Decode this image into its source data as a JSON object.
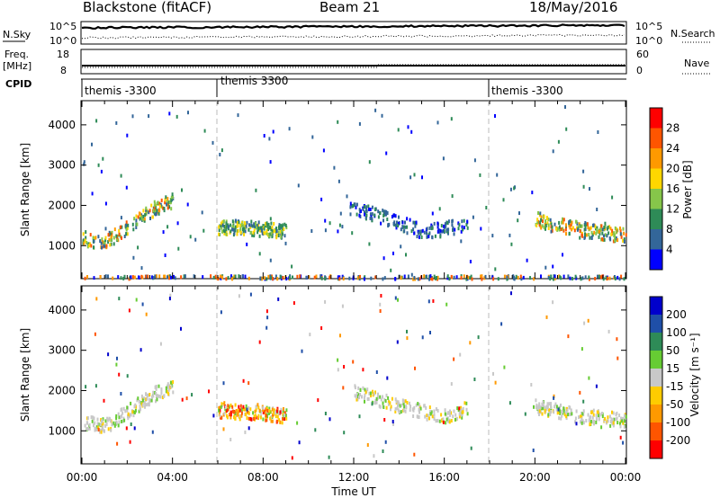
{
  "header": {
    "station": "Blackstone (fitACF)",
    "beam": "Beam 21",
    "date": "18/May/2016"
  },
  "panels": {
    "nsky": {
      "label": "N.Sky",
      "tick_top": "10^5",
      "tick_bottom": "10^0",
      "right_top": "10^5",
      "right_bottom": "10^0"
    },
    "nsearch_label": "N.Search",
    "freq": {
      "label_line1": "Freq.",
      "label_line2": "[MHz]",
      "tick_top": "18",
      "tick_bottom": "8",
      "right_top": "60",
      "right_bottom": "0"
    },
    "nave_label": "Nave",
    "cpid": {
      "label": "CPID",
      "segments": [
        "themis -3300",
        "themis 3300",
        "themis -3300"
      ],
      "segment_start_hours": [
        0,
        6,
        18
      ]
    }
  },
  "colorbars": {
    "power": {
      "label": "Power [dB]",
      "ticks": [
        "28",
        "24",
        "20",
        "16",
        "12",
        "8",
        "4"
      ],
      "colors": [
        "#ff0000",
        "#ff5500",
        "#ff9900",
        "#ffd700",
        "#86c64a",
        "#2e8b57",
        "#336699",
        "#0000ff"
      ]
    },
    "velocity": {
      "label": "Velocity [m s⁻¹]",
      "ticks": [
        "200",
        "100",
        "50",
        "15",
        "-15",
        "-50",
        "-100",
        "-200"
      ],
      "colors": [
        "#0000cc",
        "#1f4fa8",
        "#2e8b57",
        "#66cc33",
        "#c8c8c8",
        "#ffcc00",
        "#ff9900",
        "#ff5500",
        "#ff0000"
      ]
    }
  },
  "chart_data": [
    {
      "type": "heatmap",
      "title": "",
      "ylabel": "Slant Range [km]",
      "ylim": [
        180,
        4600
      ],
      "yticks": [
        1000,
        2000,
        3000,
        4000
      ],
      "xlim": [
        0,
        24
      ],
      "quantity": "Power [dB]",
      "series": [
        {
          "x": [
            0.0,
            0.5,
            1.0,
            1.5,
            2.0,
            2.5,
            3.0,
            3.5,
            4.0
          ],
          "y": [
            1250,
            1120,
            1150,
            1300,
            1500,
            1700,
            1900,
            2050,
            2150
          ]
        },
        {
          "x": [
            6.0,
            7.0,
            8.0,
            9.0
          ],
          "y": [
            1500,
            1480,
            1450,
            1400
          ]
        },
        {
          "x": [
            11.8,
            13.0,
            14.0,
            15.0,
            16.0,
            17.0
          ],
          "y": [
            2000,
            1800,
            1600,
            1400,
            1450,
            1600
          ]
        },
        {
          "x": [
            20.0,
            21.0,
            22.0,
            23.0,
            24.0
          ],
          "y": [
            1700,
            1550,
            1450,
            1350,
            1300
          ]
        },
        {
          "x": [
            0.0,
            4.0,
            8.0,
            12.0,
            16.0,
            20.0,
            24.0
          ],
          "y": [
            250,
            250,
            250,
            250,
            250,
            250,
            250
          ]
        }
      ]
    },
    {
      "type": "heatmap",
      "title": "",
      "ylabel": "Slant Range [km]",
      "xlabel": "Time UT",
      "ylim": [
        180,
        4600
      ],
      "yticks": [
        1000,
        2000,
        3000,
        4000
      ],
      "xlim": [
        0,
        24
      ],
      "xticklabels": [
        "00:00",
        "04:00",
        "08:00",
        "12:00",
        "16:00",
        "20:00",
        "00:00"
      ],
      "quantity": "Velocity [m s⁻¹]",
      "series": [
        {
          "x": [
            0.0,
            1.0,
            2.0,
            3.0,
            4.0
          ],
          "y": [
            1250,
            1150,
            1500,
            1900,
            2150
          ]
        },
        {
          "x": [
            6.0,
            7.0,
            8.0,
            9.0
          ],
          "y": [
            1550,
            1500,
            1480,
            1400
          ]
        },
        {
          "x": [
            12.0,
            14.0,
            16.0,
            17.0
          ],
          "y": [
            2000,
            1650,
            1400,
            1600
          ]
        },
        {
          "x": [
            20.0,
            22.0,
            24.0
          ],
          "y": [
            1650,
            1400,
            1300
          ]
        }
      ]
    }
  ]
}
